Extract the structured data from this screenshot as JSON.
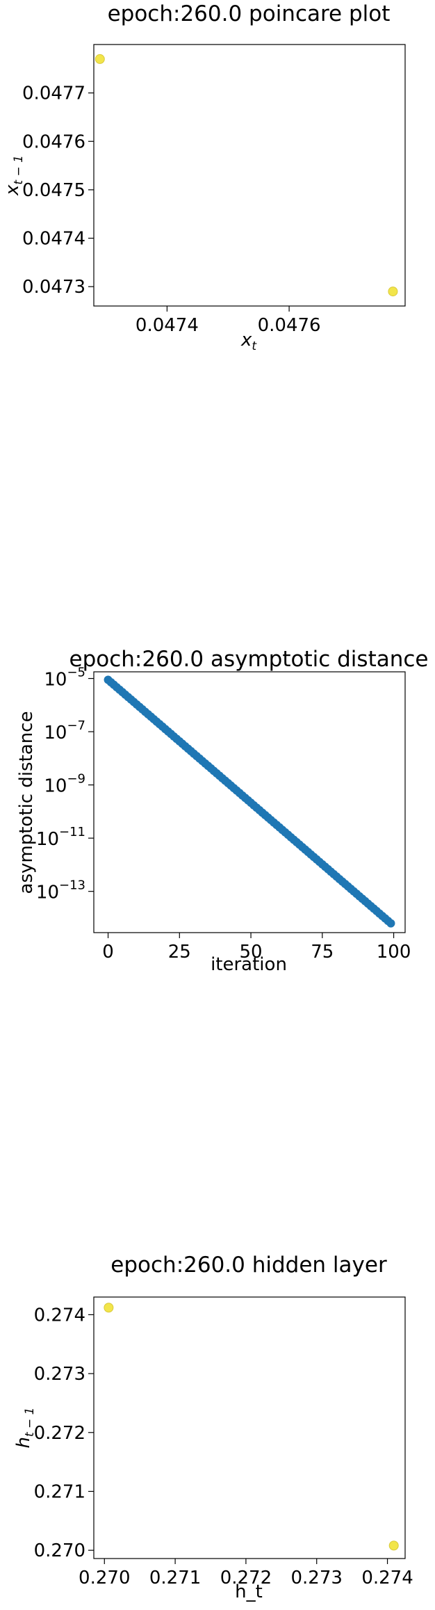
{
  "chart_data": [
    {
      "type": "scatter",
      "title": "epoch:260.0 poincare plot",
      "xlabel": "x",
      "xlabel_sub": "t",
      "ylabel": "x",
      "ylabel_sub": "t − 1",
      "xlim": [
        0.04728,
        0.04779
      ],
      "ylim": [
        0.04726,
        0.0478
      ],
      "xticks": [
        0.0474,
        0.0476
      ],
      "xtick_labels": [
        "0.0474",
        "0.0476"
      ],
      "yticks": [
        0.0473,
        0.0474,
        0.0475,
        0.0476,
        0.0477
      ],
      "ytick_labels": [
        "0.0473",
        "0.0474",
        "0.0475",
        "0.0476",
        "0.0477"
      ],
      "grid": false,
      "point_color": "#f2e54a",
      "points": [
        {
          "x": 0.04729,
          "y": 0.04777
        },
        {
          "x": 0.04777,
          "y": 0.04729
        }
      ]
    },
    {
      "type": "scatter",
      "title": "epoch:260.0 asymptotic distance",
      "xlabel": "iteration",
      "ylabel": "asymptotic distance",
      "yscale": "log",
      "xlim": [
        -5,
        104
      ],
      "ylim_log10": [
        -14.55,
        -4.75
      ],
      "xticks": [
        0,
        25,
        50,
        75,
        100
      ],
      "xtick_labels": [
        "0",
        "25",
        "50",
        "75",
        "100"
      ],
      "yticks_log10": [
        -5,
        -7,
        -9,
        -11,
        -13
      ],
      "ytick_base": "10",
      "ytick_exponents": [
        "−5",
        "−7",
        "−9",
        "−11",
        "−13"
      ],
      "grid": false,
      "point_color": "#1f77b4",
      "points_generator": {
        "x_start": 0,
        "x_end": 99,
        "log10_y_start": -5.05,
        "log10_y_end": -14.2
      }
    },
    {
      "type": "scatter",
      "title": "epoch:260.0 hidden layer",
      "xlabel": "h_t",
      "ylabel": "h",
      "ylabel_sub": "t − 1",
      "xlim": [
        0.26985,
        0.27425
      ],
      "ylim": [
        0.26986,
        0.2743
      ],
      "xticks": [
        0.27,
        0.271,
        0.272,
        0.273,
        0.274
      ],
      "xtick_labels": [
        "0.270",
        "0.271",
        "0.272",
        "0.273",
        "0.274"
      ],
      "yticks": [
        0.27,
        0.271,
        0.272,
        0.273,
        0.274
      ],
      "ytick_labels": [
        "0.270",
        "0.271",
        "0.272",
        "0.273",
        "0.274"
      ],
      "grid": false,
      "point_color": "#f2e54a",
      "points": [
        {
          "x": 0.27006,
          "y": 0.27412
        },
        {
          "x": 0.27409,
          "y": 0.27008
        }
      ]
    }
  ]
}
